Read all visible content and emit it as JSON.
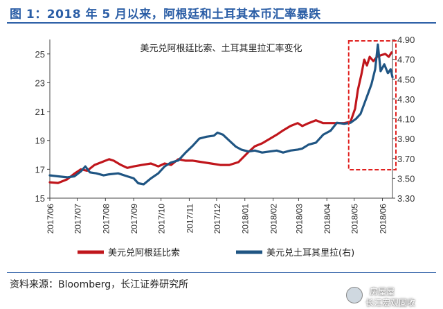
{
  "figure": {
    "title": "图 1：2018 年 5 月以来，阿根廷和土耳其本币汇率暴跌",
    "source": "资料来源：Bloomberg，长江证券研究所",
    "watermark_line1": "房屋屋",
    "watermark_line2": "长江宏观固收"
  },
  "chart_data": {
    "type": "line",
    "title": "美元兑阿根廷比索、土耳其里拉汇率变化",
    "x_ticks": [
      "2017/06",
      "2017/07",
      "2017/08",
      "2017/09",
      "2017/10",
      "2017/11",
      "2017/12",
      "2018/01",
      "2018/02",
      "2018/03",
      "2018/04",
      "2018/05",
      "2018/06"
    ],
    "x_range": [
      "2017-06-01",
      "2018-06-12"
    ],
    "y_left": {
      "ylim": [
        15,
        26
      ],
      "ticks": [
        "15",
        "17",
        "19",
        "21",
        "23",
        "25"
      ]
    },
    "y_right": {
      "ylim": [
        3.3,
        4.9
      ],
      "ticks": [
        "3.30",
        "3.50",
        "3.70",
        "3.90",
        "4.10",
        "4.30",
        "4.50",
        "4.70",
        "4.90"
      ]
    },
    "colors": {
      "ars": "#c0161c",
      "try": "#1f5583",
      "highlight": "#e0201e",
      "title": "#2b5ea6"
    },
    "series": [
      {
        "name": "美元兑阿根廷比索",
        "axis": "left",
        "points": [
          [
            "2017-06-01",
            16.1
          ],
          [
            "2017-06-10",
            16.05
          ],
          [
            "2017-06-20",
            16.3
          ],
          [
            "2017-06-28",
            16.7
          ],
          [
            "2017-07-05",
            17.0
          ],
          [
            "2017-07-12",
            16.9
          ],
          [
            "2017-07-20",
            17.3
          ],
          [
            "2017-07-28",
            17.5
          ],
          [
            "2017-08-05",
            17.7
          ],
          [
            "2017-08-10",
            17.6
          ],
          [
            "2017-08-18",
            17.3
          ],
          [
            "2017-08-25",
            17.1
          ],
          [
            "2017-09-01",
            17.2
          ],
          [
            "2017-09-10",
            17.3
          ],
          [
            "2017-09-20",
            17.4
          ],
          [
            "2017-09-28",
            17.2
          ],
          [
            "2017-10-05",
            17.4
          ],
          [
            "2017-10-12",
            17.3
          ],
          [
            "2017-10-20",
            17.7
          ],
          [
            "2017-10-28",
            17.6
          ],
          [
            "2017-11-05",
            17.6
          ],
          [
            "2017-11-15",
            17.5
          ],
          [
            "2017-11-25",
            17.4
          ],
          [
            "2017-12-05",
            17.3
          ],
          [
            "2017-12-15",
            17.3
          ],
          [
            "2017-12-25",
            17.5
          ],
          [
            "2018-01-05",
            18.2
          ],
          [
            "2018-01-12",
            18.6
          ],
          [
            "2018-01-20",
            18.8
          ],
          [
            "2018-01-28",
            19.1
          ],
          [
            "2018-02-05",
            19.4
          ],
          [
            "2018-02-12",
            19.7
          ],
          [
            "2018-02-20",
            20.0
          ],
          [
            "2018-02-28",
            20.2
          ],
          [
            "2018-03-05",
            20.0
          ],
          [
            "2018-03-12",
            20.2
          ],
          [
            "2018-03-20",
            20.4
          ],
          [
            "2018-03-28",
            20.2
          ],
          [
            "2018-04-05",
            20.2
          ],
          [
            "2018-04-12",
            20.2
          ],
          [
            "2018-04-20",
            20.2
          ],
          [
            "2018-04-27",
            20.3
          ],
          [
            "2018-05-02",
            21.2
          ],
          [
            "2018-05-05",
            22.5
          ],
          [
            "2018-05-09",
            23.6
          ],
          [
            "2018-05-12",
            24.6
          ],
          [
            "2018-05-15",
            24.2
          ],
          [
            "2018-05-18",
            24.8
          ],
          [
            "2018-05-22",
            24.5
          ],
          [
            "2018-05-26",
            24.8
          ],
          [
            "2018-05-30",
            24.9
          ],
          [
            "2018-06-04",
            25.0
          ],
          [
            "2018-06-08",
            24.8
          ],
          [
            "2018-06-11",
            25.1
          ]
        ]
      },
      {
        "name": "美元兑土耳其里拉(右)",
        "axis": "right",
        "points": [
          [
            "2017-06-01",
            3.53
          ],
          [
            "2017-06-10",
            3.52
          ],
          [
            "2017-06-20",
            3.51
          ],
          [
            "2017-06-28",
            3.52
          ],
          [
            "2017-07-05",
            3.57
          ],
          [
            "2017-07-10",
            3.62
          ],
          [
            "2017-07-15",
            3.56
          ],
          [
            "2017-07-22",
            3.55
          ],
          [
            "2017-07-30",
            3.53
          ],
          [
            "2017-08-05",
            3.54
          ],
          [
            "2017-08-15",
            3.55
          ],
          [
            "2017-08-25",
            3.52
          ],
          [
            "2017-09-01",
            3.5
          ],
          [
            "2017-09-06",
            3.45
          ],
          [
            "2017-09-12",
            3.44
          ],
          [
            "2017-09-20",
            3.5
          ],
          [
            "2017-09-28",
            3.55
          ],
          [
            "2017-10-05",
            3.62
          ],
          [
            "2017-10-12",
            3.66
          ],
          [
            "2017-10-20",
            3.68
          ],
          [
            "2017-10-28",
            3.76
          ],
          [
            "2017-11-05",
            3.83
          ],
          [
            "2017-11-12",
            3.9
          ],
          [
            "2017-11-20",
            3.92
          ],
          [
            "2017-11-28",
            3.93
          ],
          [
            "2017-12-02",
            3.96
          ],
          [
            "2017-12-08",
            3.94
          ],
          [
            "2017-12-15",
            3.88
          ],
          [
            "2017-12-22",
            3.82
          ],
          [
            "2017-12-28",
            3.79
          ],
          [
            "2018-01-05",
            3.77
          ],
          [
            "2018-01-12",
            3.78
          ],
          [
            "2018-01-20",
            3.76
          ],
          [
            "2018-01-28",
            3.77
          ],
          [
            "2018-02-05",
            3.78
          ],
          [
            "2018-02-12",
            3.76
          ],
          [
            "2018-02-20",
            3.78
          ],
          [
            "2018-02-28",
            3.79
          ],
          [
            "2018-03-05",
            3.8
          ],
          [
            "2018-03-12",
            3.84
          ],
          [
            "2018-03-20",
            3.86
          ],
          [
            "2018-03-28",
            3.94
          ],
          [
            "2018-04-05",
            3.98
          ],
          [
            "2018-04-12",
            4.06
          ],
          [
            "2018-04-20",
            4.05
          ],
          [
            "2018-04-27",
            4.06
          ],
          [
            "2018-05-03",
            4.1
          ],
          [
            "2018-05-08",
            4.15
          ],
          [
            "2018-05-12",
            4.25
          ],
          [
            "2018-05-16",
            4.35
          ],
          [
            "2018-05-20",
            4.45
          ],
          [
            "2018-05-24",
            4.6
          ],
          [
            "2018-05-27",
            4.85
          ],
          [
            "2018-05-30",
            4.58
          ],
          [
            "2018-06-03",
            4.65
          ],
          [
            "2018-06-07",
            4.56
          ],
          [
            "2018-06-10",
            4.6
          ],
          [
            "2018-06-12",
            4.52
          ]
        ]
      }
    ]
  }
}
